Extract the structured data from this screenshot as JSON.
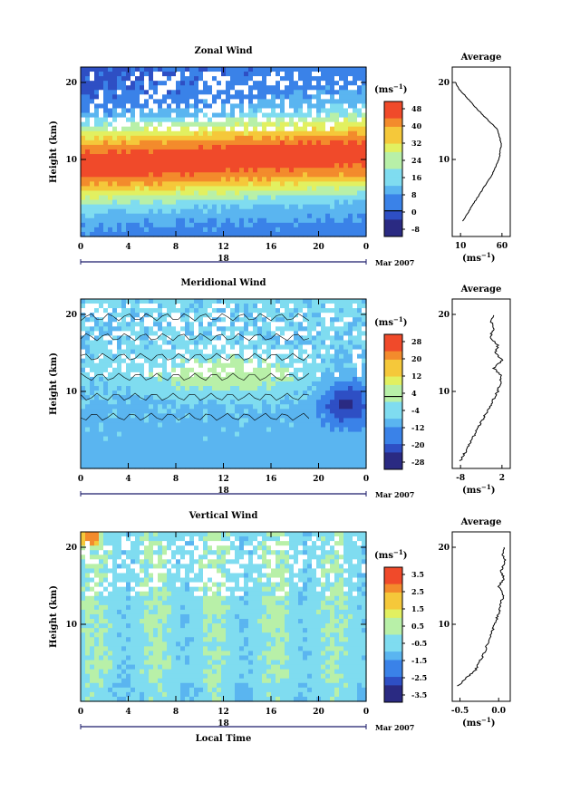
{
  "chart_data": [
    {
      "type": "heatmap",
      "title": "Zonal Wind",
      "ylabel": "Height (km)",
      "yticks": [
        "20",
        "10"
      ],
      "xticks": [
        "0",
        "4",
        "8",
        "12",
        "16",
        "20",
        "0"
      ],
      "date_label": "18",
      "month_label": "Mar 2007",
      "colorbar_unit": "(ms",
      "colorbar_ticks": [
        "48",
        "40",
        "32",
        "24",
        "16",
        "8",
        "0",
        "-8"
      ],
      "colorbar_range": [
        -12,
        52
      ],
      "average_title": "Average",
      "average_xticks": [
        "10",
        "60"
      ],
      "average_xlabel": "(ms",
      "average_xlim": [
        0,
        70
      ],
      "average_profile": {
        "height_km": [
          2,
          4,
          6,
          8,
          10,
          11,
          12,
          13,
          14,
          15,
          16,
          17,
          18,
          19,
          20
        ],
        "value": [
          13,
          24,
          36,
          48,
          56,
          58,
          59,
          57,
          54,
          44,
          35,
          26,
          18,
          9,
          4
        ]
      }
    },
    {
      "type": "heatmap",
      "title": "Meridional Wind",
      "ylabel": "Height (km)",
      "yticks": [
        "20",
        "10"
      ],
      "xticks": [
        "0",
        "4",
        "8",
        "12",
        "16",
        "20",
        "0"
      ],
      "date_label": "18",
      "month_label": "Mar 2007",
      "colorbar_unit": "(ms",
      "colorbar_ticks": [
        "28",
        "20",
        "12",
        "4",
        "-4",
        "-12",
        "-20",
        "-28"
      ],
      "colorbar_range": [
        -32,
        32
      ],
      "average_title": "Average",
      "average_xticks": [
        "-8",
        "2"
      ],
      "average_xlabel": "(ms",
      "average_xlim": [
        -10,
        4
      ],
      "average_profile": {
        "height_km": [
          1,
          2,
          4,
          6,
          8,
          10,
          11,
          12,
          13,
          14,
          15,
          16,
          17,
          18,
          19,
          20
        ],
        "value": [
          -8,
          -7,
          -5,
          -3,
          -1,
          1,
          1.5,
          2,
          0,
          2,
          0.5,
          1,
          -1,
          0,
          -0.5,
          0
        ]
      }
    },
    {
      "type": "heatmap",
      "title": "Vertical Wind",
      "ylabel": "Height (km)",
      "yticks": [
        "20",
        "10"
      ],
      "xticks": [
        "0",
        "4",
        "8",
        "12",
        "16",
        "20",
        "0"
      ],
      "date_label": "18",
      "xlabel": "Local Time",
      "month_label": "Mar 2007",
      "colorbar_unit": "(ms",
      "colorbar_ticks": [
        "3.5",
        "2.5",
        "1.5",
        "0.5",
        "-0.5",
        "-1.5",
        "-2.5",
        "-3.5"
      ],
      "colorbar_range": [
        -4,
        4
      ],
      "average_title": "Average",
      "average_xticks": [
        "-0.5",
        "0.0"
      ],
      "average_xlabel": "(ms",
      "average_xlim": [
        -0.6,
        0.15
      ],
      "average_profile": {
        "height_km": [
          2,
          3,
          4,
          6,
          8,
          10,
          12,
          14,
          15,
          16,
          17,
          18,
          19,
          20
        ],
        "value": [
          -0.52,
          -0.42,
          -0.3,
          -0.2,
          -0.12,
          -0.05,
          0.02,
          0.06,
          0.0,
          0.07,
          0.03,
          0.09,
          0.05,
          0.08
        ]
      }
    }
  ]
}
